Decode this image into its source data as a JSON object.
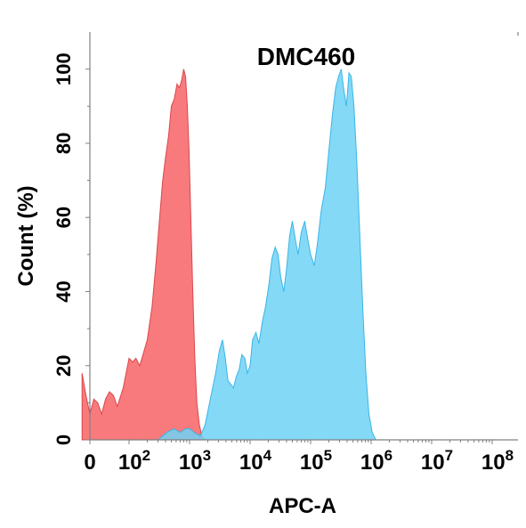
{
  "chart_data": {
    "type": "area",
    "title": "DMC460",
    "xlabel": "APC-A",
    "ylabel": "Count  (%)",
    "xscale": "biexponential",
    "xlim": [
      -20,
      100000000
    ],
    "ylim": [
      0,
      110
    ],
    "grid": false,
    "legend": "none",
    "x_ticks": [
      {
        "value": 0,
        "base": "0",
        "exp": ""
      },
      {
        "value": 100,
        "base": "10",
        "exp": "2"
      },
      {
        "value": 1000,
        "base": "10",
        "exp": "3"
      },
      {
        "value": 10000,
        "base": "10",
        "exp": "4"
      },
      {
        "value": 100000,
        "base": "10",
        "exp": "5"
      },
      {
        "value": 1000000,
        "base": "10",
        "exp": "6"
      },
      {
        "value": 10000000,
        "base": "10",
        "exp": "7"
      },
      {
        "value": 100000000,
        "base": "10",
        "exp": "8"
      }
    ],
    "y_ticks": [
      0,
      20,
      40,
      60,
      80,
      100
    ],
    "series": [
      {
        "color": "#f87a7c",
        "stroke": "#d9484c",
        "points": [
          [
            -20,
            18
          ],
          [
            -10,
            12
          ],
          [
            0,
            7
          ],
          [
            10,
            11
          ],
          [
            20,
            10
          ],
          [
            30,
            7
          ],
          [
            40,
            11
          ],
          [
            50,
            13
          ],
          [
            60,
            12
          ],
          [
            70,
            9
          ],
          [
            85,
            14
          ],
          [
            100,
            22
          ],
          [
            115,
            21
          ],
          [
            130,
            22
          ],
          [
            150,
            20
          ],
          [
            170,
            23
          ],
          [
            200,
            27
          ],
          [
            240,
            36
          ],
          [
            280,
            48
          ],
          [
            320,
            60
          ],
          [
            360,
            70
          ],
          [
            400,
            76
          ],
          [
            450,
            82
          ],
          [
            500,
            90
          ],
          [
            560,
            92
          ],
          [
            620,
            96
          ],
          [
            680,
            95
          ],
          [
            740,
            97
          ],
          [
            800,
            100
          ],
          [
            860,
            98
          ],
          [
            920,
            90
          ],
          [
            980,
            78
          ],
          [
            1050,
            60
          ],
          [
            1130,
            40
          ],
          [
            1220,
            22
          ],
          [
            1320,
            10
          ],
          [
            1450,
            4
          ],
          [
            1600,
            1
          ],
          [
            1800,
            0
          ]
        ]
      },
      {
        "color": "#6fd2f5",
        "stroke": "#3ab5e6",
        "points": [
          [
            300,
            0
          ],
          [
            420,
            2
          ],
          [
            550,
            3
          ],
          [
            700,
            2
          ],
          [
            850,
            3
          ],
          [
            1000,
            3
          ],
          [
            1200,
            2
          ],
          [
            1500,
            1
          ],
          [
            1800,
            4
          ],
          [
            2200,
            11
          ],
          [
            2700,
            18
          ],
          [
            3100,
            24
          ],
          [
            3500,
            27
          ],
          [
            3900,
            22
          ],
          [
            4300,
            16
          ],
          [
            4800,
            15
          ],
          [
            5300,
            14
          ],
          [
            5900,
            17
          ],
          [
            6600,
            19
          ],
          [
            7300,
            23
          ],
          [
            8200,
            22
          ],
          [
            9000,
            18
          ],
          [
            10000,
            20
          ],
          [
            11000,
            27
          ],
          [
            12500,
            29
          ],
          [
            14000,
            26
          ],
          [
            16000,
            32
          ],
          [
            18000,
            36
          ],
          [
            20500,
            42
          ],
          [
            23000,
            49
          ],
          [
            26000,
            52
          ],
          [
            29000,
            50
          ],
          [
            32000,
            44
          ],
          [
            36000,
            40
          ],
          [
            40000,
            46
          ],
          [
            45000,
            55
          ],
          [
            50000,
            59
          ],
          [
            56000,
            54
          ],
          [
            62000,
            50
          ],
          [
            70000,
            56
          ],
          [
            80000,
            59
          ],
          [
            90000,
            54
          ],
          [
            100000,
            50
          ],
          [
            115000,
            47
          ],
          [
            130000,
            53
          ],
          [
            150000,
            62
          ],
          [
            175000,
            68
          ],
          [
            200000,
            78
          ],
          [
            230000,
            88
          ],
          [
            260000,
            95
          ],
          [
            290000,
            98
          ],
          [
            320000,
            100
          ],
          [
            350000,
            95
          ],
          [
            390000,
            90
          ],
          [
            430000,
            99
          ],
          [
            470000,
            98
          ],
          [
            520000,
            90
          ],
          [
            580000,
            75
          ],
          [
            650000,
            55
          ],
          [
            730000,
            35
          ],
          [
            820000,
            18
          ],
          [
            920000,
            7
          ],
          [
            1040000,
            2
          ],
          [
            1200000,
            0
          ]
        ]
      }
    ]
  }
}
